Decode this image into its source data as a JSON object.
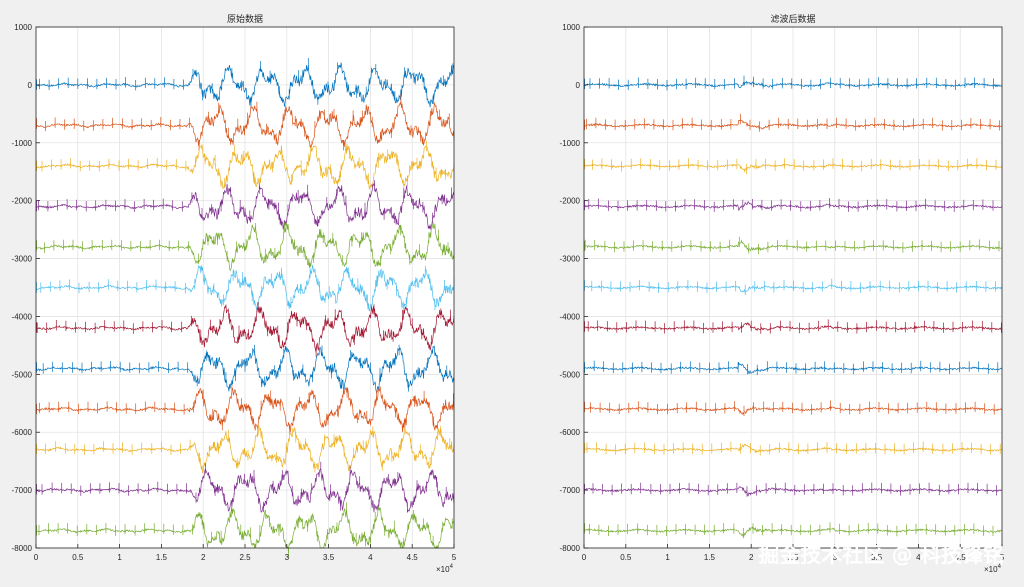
{
  "watermark": "掘金技术社区 @ 科技锋铭",
  "series_colors": [
    "#0072bd",
    "#d95319",
    "#edb120",
    "#7e2f8e",
    "#77ac30",
    "#4dbeee",
    "#a2142f",
    "#0072bd",
    "#d95319",
    "#edb120",
    "#7e2f8e",
    "#77ac30"
  ],
  "chart_data": [
    {
      "type": "line",
      "title": "原始数据",
      "xlim": [
        0,
        50000
      ],
      "ylim": [
        -8000,
        1000
      ],
      "x_tick_labels": [
        "0",
        "0.5",
        "1",
        "1.5",
        "2",
        "2.5",
        "3",
        "3.5",
        "4",
        "4.5",
        "5"
      ],
      "x_multiplier": "×10",
      "x_multiplier_exp": "4",
      "y_ticks": [
        1000,
        0,
        -1000,
        -2000,
        -3000,
        -4000,
        -5000,
        -6000,
        -7000,
        -8000
      ],
      "grid": true,
      "series_offsets": [
        0,
        -700,
        -1400,
        -2100,
        -2800,
        -3500,
        -4200,
        -4900,
        -5600,
        -6300,
        -7000,
        -7700
      ],
      "artifact_range": [
        18000,
        50000
      ],
      "artifact_amplitude": 300,
      "spike_amplitude": 110,
      "spike_period": 1150
    },
    {
      "type": "line",
      "title": "滤波后数据",
      "xlim": [
        0,
        50000
      ],
      "ylim": [
        -8000,
        1000
      ],
      "x_tick_labels": [
        "0",
        "0.5",
        "1",
        "1.5",
        "2",
        "2.5",
        "3",
        "3.5",
        "4",
        "4.5",
        "5"
      ],
      "x_multiplier": "×10",
      "x_multiplier_exp": "4",
      "y_ticks": [
        1000,
        0,
        -1000,
        -2000,
        -3000,
        -4000,
        -5000,
        -6000,
        -7000,
        -8000
      ],
      "grid": true,
      "series_offsets": [
        0,
        -700,
        -1400,
        -2100,
        -2800,
        -3500,
        -4200,
        -4900,
        -5600,
        -6300,
        -7000,
        -7700
      ],
      "artifact_range": [
        18500,
        30000
      ],
      "artifact_amplitude": 70,
      "spike_amplitude": 110,
      "spike_period": 1150
    }
  ]
}
